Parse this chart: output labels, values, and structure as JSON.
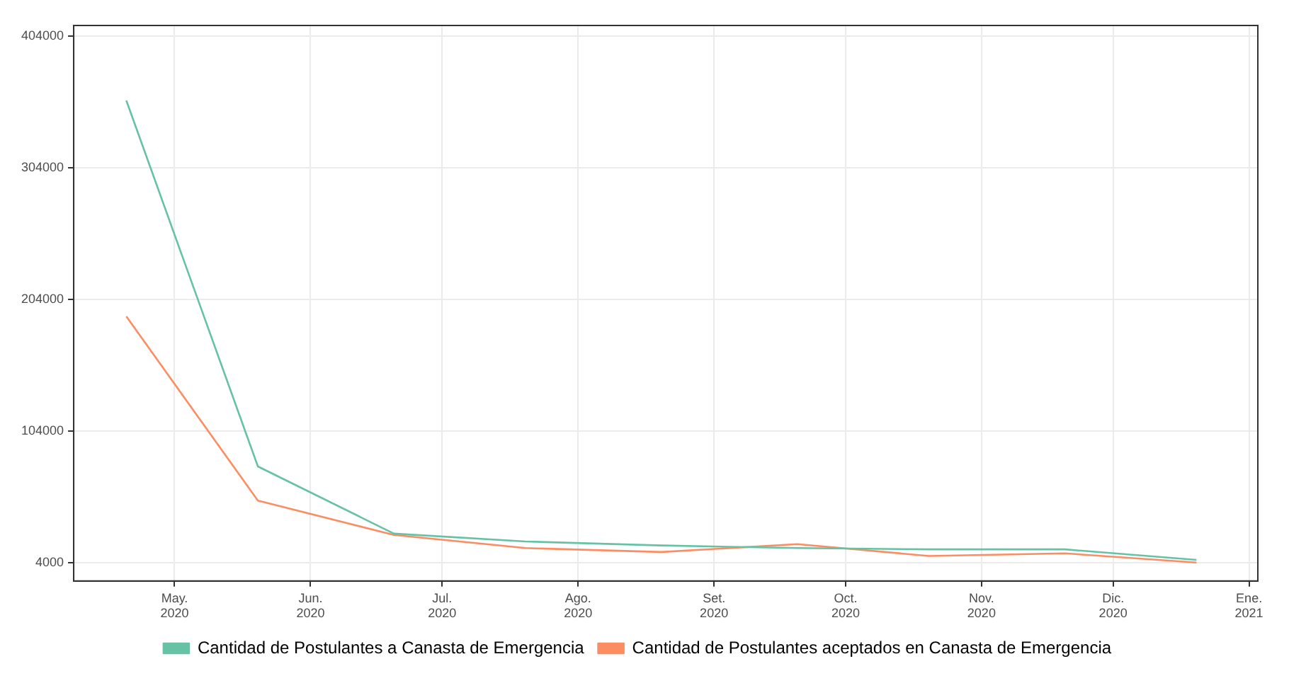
{
  "chart_data": {
    "type": "line",
    "x": [
      "2020-04-20",
      "2020-05-20",
      "2020-06-20",
      "2020-07-20",
      "2020-08-20",
      "2020-09-20",
      "2020-10-20",
      "2020-11-20",
      "2020-12-20"
    ],
    "series": [
      {
        "name": "Cantidad de Postulantes a Canasta de Emergencia",
        "color": "#66c2a5",
        "values": [
          355000,
          77000,
          26000,
          20000,
          17000,
          15000,
          14000,
          14000,
          6000
        ]
      },
      {
        "name": "Cantidad de Postulantes aceptados en Canasta de Emergencia",
        "color": "#fc8d62",
        "values": [
          191000,
          51000,
          25000,
          15000,
          12000,
          18000,
          9000,
          11000,
          4000
        ]
      }
    ],
    "xlim": [
      "2020-04-08",
      "2021-01-03"
    ],
    "xticks": [
      {
        "value": "2020-05-01",
        "label": "May.\n2020"
      },
      {
        "value": "2020-06-01",
        "label": "Jun.\n2020"
      },
      {
        "value": "2020-07-01",
        "label": "Jul.\n2020"
      },
      {
        "value": "2020-08-01",
        "label": "Ago.\n2020"
      },
      {
        "value": "2020-09-01",
        "label": "Set.\n2020"
      },
      {
        "value": "2020-10-01",
        "label": "Oct.\n2020"
      },
      {
        "value": "2020-11-01",
        "label": "Nov.\n2020"
      },
      {
        "value": "2020-12-01",
        "label": "Dic.\n2020"
      },
      {
        "value": "2021-01-01",
        "label": "Ene.\n2021"
      }
    ],
    "ylim": [
      -10000,
      412000
    ],
    "yticks": [
      4000,
      104000,
      204000,
      304000,
      404000
    ],
    "grid": true,
    "legend": "bottom",
    "marker": "none",
    "line_style": "solid"
  }
}
